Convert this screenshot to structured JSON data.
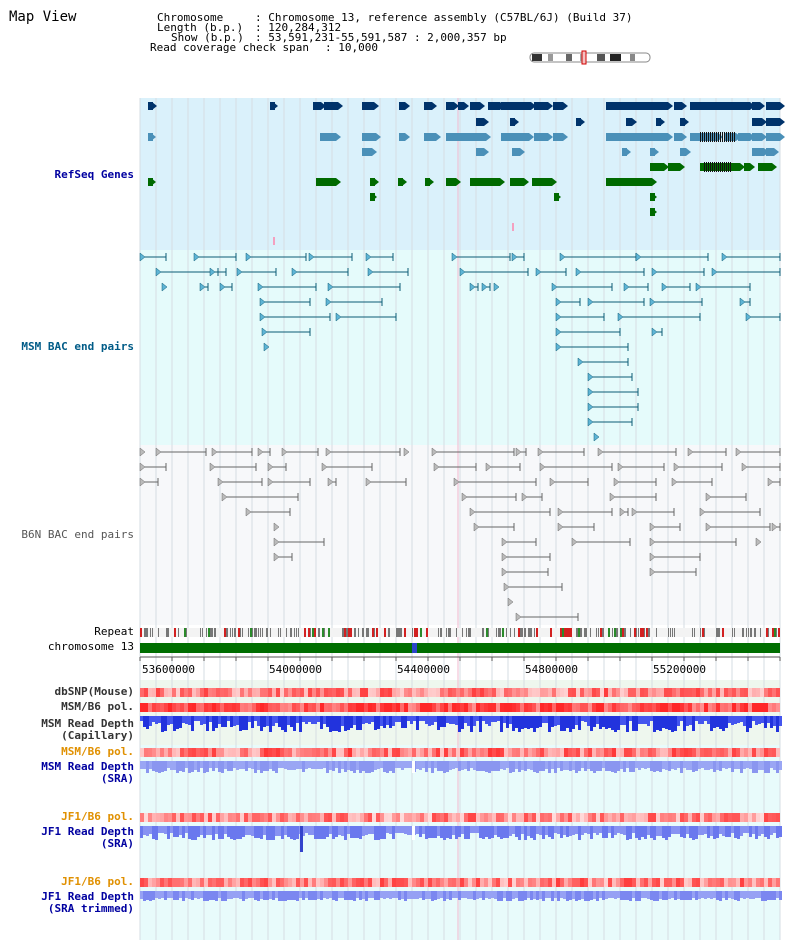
{
  "header": {
    "view_title": "Map View",
    "chromosome_label": "Chromosome",
    "chromosome_value": ": Chromosome 13, reference assembly (C57BL/6J) (Build 37)",
    "length_label": "Length (b.p.)",
    "length_value": ": 120,284,312",
    "show_label": "Show (b.p.)",
    "show_value": ": 53,591,231-55,591,587 : 2,000,357 bp",
    "coverage_label": "Read coverage check span",
    "coverage_value": ": 10,000"
  },
  "tracks": {
    "refseq": "RefSeq Genes",
    "msm_bac": "MSM BAC end pairs",
    "b6n_bac": "B6N BAC end pairs",
    "repeat": "Repeat",
    "chromosome": "chromosome 13",
    "dbsnp": "dbSNP(Mouse)",
    "msm_pol": "MSM/B6 pol.",
    "msm_depth_1": "MSM Read Depth",
    "msm_depth_1b": "(Capillary)",
    "msm_pol_2": "MSM/B6 pol.",
    "msm_depth_2": "MSM Read Depth",
    "msm_depth_2b": "(SRA)",
    "jf1_pol": "JF1/B6 pol.",
    "jf1_depth": "JF1 Read Depth",
    "jf1_depth_b": "(SRA)",
    "jf1_pol_2": "JF1/B6 pol.",
    "jf1_depth_2": "JF1 Read Depth",
    "jf1_depth_2b": "(SRA trimmed)"
  },
  "axis": {
    "ticks": [
      "53600000",
      "54000000",
      "54400000",
      "54800000",
      "55200000"
    ]
  },
  "colors": {
    "refseq_bg": "#daf1fb",
    "msm_bg": "#e5fbfb",
    "b6n_bg": "#f7f8fa",
    "lower_bg": "#eef7ee",
    "gene_navy": "#00336b",
    "gene_steel": "#4a90b8",
    "gene_green": "#006a00",
    "msm_line": "#0b5b76",
    "b6n_line": "#666666",
    "label_blue": "#0000a0",
    "label_teal": "#005b87",
    "label_orange": "#e09000",
    "chrom_green": "#006e00"
  }
}
